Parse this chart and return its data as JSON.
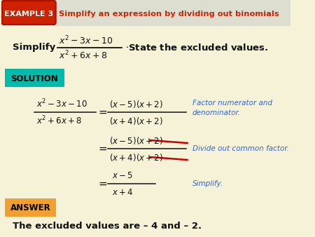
{
  "bg_color": "#f5f2d8",
  "header_bg": "#e8e8c8",
  "title_bg": "#cc2200",
  "title_label": "EXAMPLE 3",
  "title_text": "Simplify an expression by dividing out binomials",
  "title_text_color": "#cc2200",
  "solution_bg": "#00ccaa",
  "solution_text": "SOLUTION",
  "answer_bg": "#f0a030",
  "answer_text": "ANSWER",
  "step1_note": "Factor numerator and\ndenominator.",
  "step2_note": "Divide out common factor.",
  "step3_note": "Simplify.",
  "note_color": "#3366cc",
  "text_color": "#111111",
  "strike_color": "#cc0000"
}
